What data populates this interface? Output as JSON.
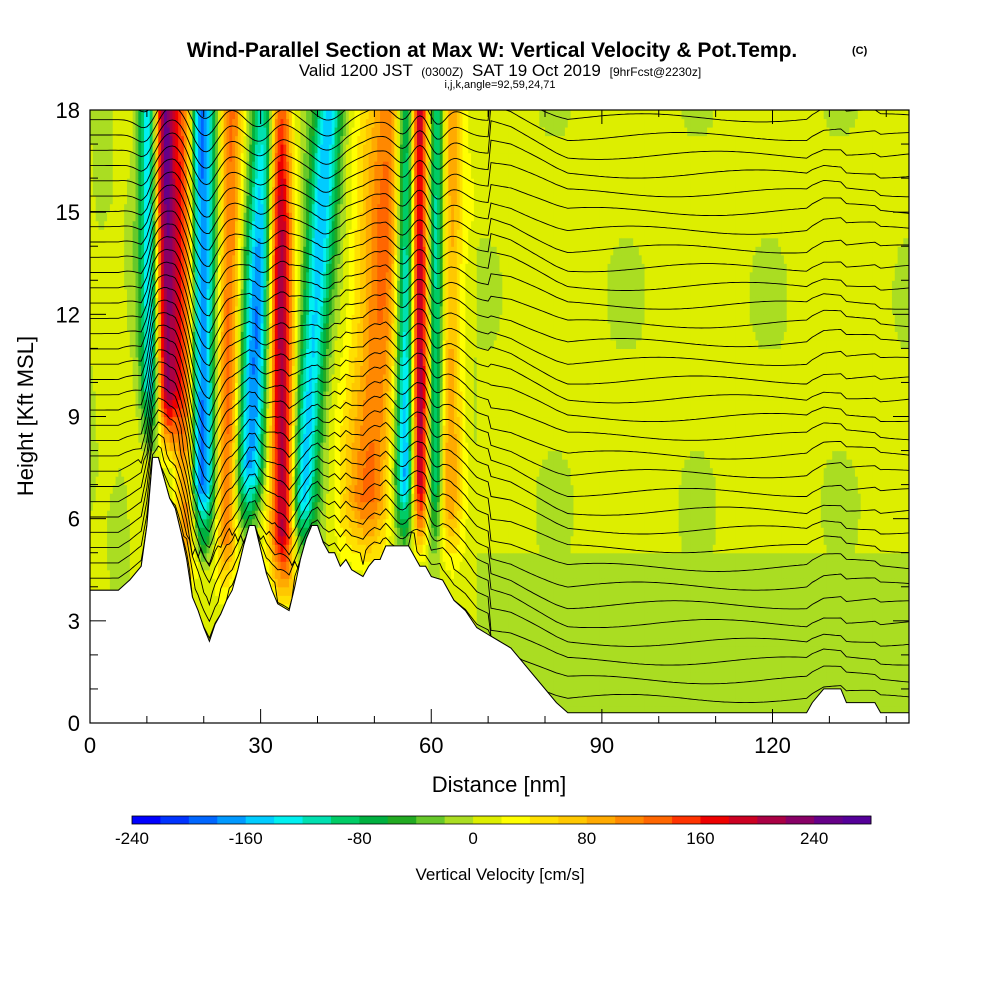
{
  "chart_data": {
    "type": "heatmap",
    "title": "Wind-Parallel Section at Max W: Vertical Velocity & Pot.Temp.",
    "title_mark": "(C)",
    "subtitle_valid": "Valid 1200 JST",
    "subtitle_utc": "(0300Z)",
    "subtitle_date": "SAT 19 Oct 2019",
    "subtitle_fcst": "[9hrFcst@2230z]",
    "subtitle_grid": "i,j,k,angle=92,59,24,71",
    "xlabel": "Distance [nm]",
    "ylabel": "Height [Kft MSL]",
    "xlim": [
      0,
      144
    ],
    "ylim": [
      0,
      18
    ],
    "x_ticks": [
      "0",
      "30",
      "60",
      "90",
      "120"
    ],
    "x_tick_values": [
      0,
      30,
      60,
      90,
      120
    ],
    "y_ticks": [
      "0",
      "3",
      "6",
      "9",
      "12",
      "15",
      "18"
    ],
    "y_tick_values": [
      0,
      3,
      6,
      9,
      12,
      15,
      18
    ],
    "colorbar": {
      "title": "Vertical Velocity [cm/s]",
      "min": -240,
      "max": 280,
      "step": 20,
      "tick_labels": [
        "-240",
        "-160",
        "-80",
        "0",
        "80",
        "160",
        "240"
      ],
      "tick_values": [
        -240,
        -160,
        -80,
        0,
        80,
        160,
        240
      ],
      "colors": [
        "#0000ff",
        "#0033ff",
        "#0066ff",
        "#0099ff",
        "#00ccff",
        "#00f0f0",
        "#00e0b0",
        "#00cc66",
        "#00b040",
        "#22aa22",
        "#66c82a",
        "#aadd22",
        "#ddee00",
        "#ffff00",
        "#ffe000",
        "#ffc800",
        "#ffaa00",
        "#ff8800",
        "#ff6600",
        "#ff3300",
        "#ee0000",
        "#cc0022",
        "#aa0044",
        "#880066",
        "#660088",
        "#550099"
      ]
    },
    "terrain_height_kft": [
      [
        0,
        3.9
      ],
      [
        5,
        3.9
      ],
      [
        7,
        4.2
      ],
      [
        9,
        4.6
      ],
      [
        10,
        5.8
      ],
      [
        11,
        7.8
      ],
      [
        12,
        7.8
      ],
      [
        13,
        7.2
      ],
      [
        14,
        6.6
      ],
      [
        15,
        6.3
      ],
      [
        16,
        5.6
      ],
      [
        17,
        4.8
      ],
      [
        18,
        3.7
      ],
      [
        19,
        3.3
      ],
      [
        20,
        2.8
      ],
      [
        21,
        2.4
      ],
      [
        22,
        2.9
      ],
      [
        23,
        3.2
      ],
      [
        24,
        3.6
      ],
      [
        25,
        3.9
      ],
      [
        26,
        4.5
      ],
      [
        27,
        5.2
      ],
      [
        28,
        5.8
      ],
      [
        29,
        5.8
      ],
      [
        30,
        5.1
      ],
      [
        31,
        4.4
      ],
      [
        32,
        3.9
      ],
      [
        33,
        3.5
      ],
      [
        34,
        3.4
      ],
      [
        35,
        3.3
      ],
      [
        36,
        4.0
      ],
      [
        37,
        4.8
      ],
      [
        38,
        5.4
      ],
      [
        39,
        5.8
      ],
      [
        40,
        5.8
      ],
      [
        41,
        5.3
      ],
      [
        42,
        5.0
      ],
      [
        43,
        5.0
      ],
      [
        44,
        4.6
      ],
      [
        45,
        4.8
      ],
      [
        46,
        4.5
      ],
      [
        47,
        4.4
      ],
      [
        48,
        4.3
      ],
      [
        49,
        4.6
      ],
      [
        50,
        4.8
      ],
      [
        51,
        4.8
      ],
      [
        52,
        5.2
      ],
      [
        53,
        5.2
      ],
      [
        56,
        5.2
      ],
      [
        58,
        4.6
      ],
      [
        59,
        4.6
      ],
      [
        60,
        4.3
      ],
      [
        62,
        4.2
      ],
      [
        64,
        3.6
      ],
      [
        66,
        3.3
      ],
      [
        68,
        2.8
      ],
      [
        70,
        2.6
      ],
      [
        72,
        2.4
      ],
      [
        74,
        2.2
      ],
      [
        76,
        1.8
      ],
      [
        78,
        1.4
      ],
      [
        80,
        1.0
      ],
      [
        82,
        0.6
      ],
      [
        84,
        0.3
      ],
      [
        90,
        0.3
      ],
      [
        100,
        0.3
      ],
      [
        110,
        0.3
      ],
      [
        120,
        0.3
      ],
      [
        126,
        0.3
      ],
      [
        127,
        0.6
      ],
      [
        129,
        1.0
      ],
      [
        132,
        1.0
      ],
      [
        133,
        0.6
      ],
      [
        138,
        0.6
      ],
      [
        139,
        0.3
      ],
      [
        144,
        0.3
      ]
    ],
    "updraft_bands": [
      {
        "x_base": 13.5,
        "z_base": 7.8,
        "slope_nm_per_kft": -0.05,
        "w_cm_s": 250,
        "width_nm": 2.6
      },
      {
        "x_base": 17.2,
        "z_base": 4.0,
        "slope_nm_per_kft": -0.02,
        "w_cm_s": 140,
        "width_nm": 1.8
      },
      {
        "x_base": 24.0,
        "z_base": 3.6,
        "slope_nm_per_kft": 0.05,
        "w_cm_s": 120,
        "width_nm": 2.0
      },
      {
        "x_base": 34.2,
        "z_base": 3.6,
        "slope_nm_per_kft": -0.08,
        "w_cm_s": 220,
        "width_nm": 2.2
      },
      {
        "x_base": 48.0,
        "z_base": 4.6,
        "slope_nm_per_kft": 0.35,
        "w_cm_s": 120,
        "width_nm": 4.0
      },
      {
        "x_base": 58.0,
        "z_base": 5.0,
        "slope_nm_per_kft": -0.02,
        "w_cm_s": 220,
        "width_nm": 1.6
      },
      {
        "x_base": 63.0,
        "z_base": 4.5,
        "slope_nm_per_kft": 0.05,
        "w_cm_s": 90,
        "width_nm": 2.0
      }
    ],
    "downdraft_bands": [
      {
        "x_base": 11.0,
        "z_base": 7.8,
        "slope_nm_per_kft": -0.05,
        "w_cm_s": -220,
        "width_nm": 1.8
      },
      {
        "x_base": 19.5,
        "z_base": 5.0,
        "slope_nm_per_kft": 0.0,
        "w_cm_s": -200,
        "width_nm": 2.4
      },
      {
        "x_base": 27.5,
        "z_base": 5.5,
        "slope_nm_per_kft": 0.3,
        "w_cm_s": -180,
        "width_nm": 2.6
      },
      {
        "x_base": 36.5,
        "z_base": 4.5,
        "slope_nm_per_kft": 0.4,
        "w_cm_s": -160,
        "width_nm": 2.4
      },
      {
        "x_base": 55.5,
        "z_base": 5.2,
        "slope_nm_per_kft": 0.02,
        "w_cm_s": -180,
        "width_nm": 1.8
      },
      {
        "x_base": 60.5,
        "z_base": 5.0,
        "slope_nm_per_kft": 0.05,
        "w_cm_s": -130,
        "width_nm": 1.4
      }
    ],
    "theta_contour_interval": 1,
    "theta_contour_count": 40
  }
}
